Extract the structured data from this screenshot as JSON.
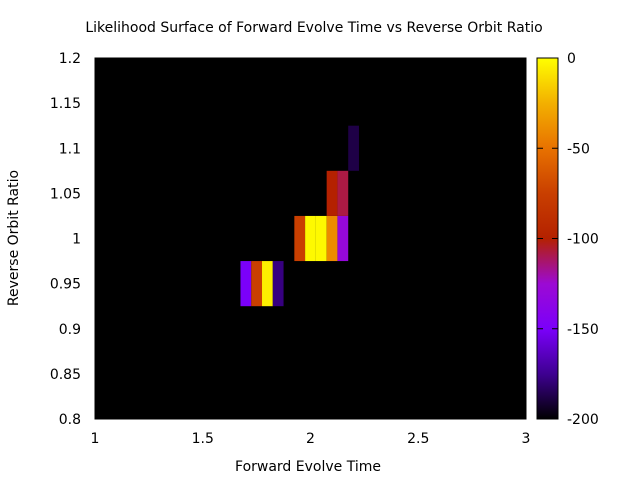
{
  "chart_data": {
    "type": "heatmap",
    "title": "Likelihood Surface of Forward Evolve Time vs Reverse Orbit Ratio",
    "xlabel": "Forward Evolve Time",
    "ylabel": "Reverse Orbit Ratio",
    "xlim": [
      1,
      3
    ],
    "ylim": [
      0.8,
      1.2
    ],
    "x_ticks": [
      "1",
      "1.5",
      "2",
      "2.5",
      "3"
    ],
    "y_ticks": [
      "0.8",
      "0.85",
      "0.9",
      "0.95",
      "1",
      "1.05",
      "1.1",
      "1.15",
      "1.2"
    ],
    "colorbar": {
      "range": [
        -200,
        0
      ],
      "ticks": [
        "0",
        "-50",
        "-100",
        "-150",
        "-200"
      ],
      "palette": "gnuplot (black-purple-red-yellow)"
    },
    "background_value": -200,
    "cell_size": [
      0.05,
      0.05
    ],
    "cells": [
      {
        "x": 1.7,
        "y": 0.95,
        "v": -150
      },
      {
        "x": 1.75,
        "y": 0.95,
        "v": -75
      },
      {
        "x": 1.8,
        "y": 0.95,
        "v": -5
      },
      {
        "x": 1.85,
        "y": 0.95,
        "v": -178
      },
      {
        "x": 1.95,
        "y": 1.0,
        "v": -75
      },
      {
        "x": 2.0,
        "y": 1.0,
        "v": -2
      },
      {
        "x": 2.05,
        "y": 1.0,
        "v": -2
      },
      {
        "x": 2.1,
        "y": 1.0,
        "v": -40
      },
      {
        "x": 2.15,
        "y": 1.0,
        "v": -130
      },
      {
        "x": 2.1,
        "y": 1.05,
        "v": -100
      },
      {
        "x": 2.15,
        "y": 1.05,
        "v": -108
      },
      {
        "x": 2.2,
        "y": 1.1,
        "v": -188
      }
    ]
  }
}
